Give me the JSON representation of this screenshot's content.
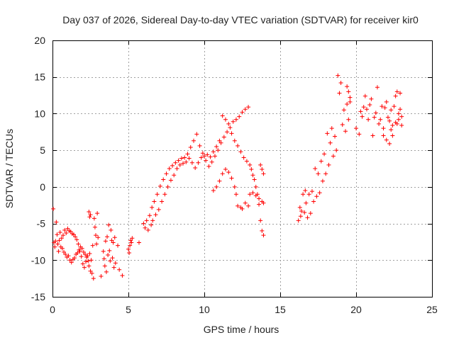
{
  "chart_data": {
    "type": "scatter",
    "title": "Day 037 of 2026, Sidereal Day-to-day VTEC variation (SDTVAR) for receiver kir0",
    "xlabel": "GPS time / hours",
    "ylabel": "SDTVAR / TECUs",
    "xlim": [
      0,
      25
    ],
    "ylim": [
      -15,
      20
    ],
    "xticks": [
      0,
      5,
      10,
      15,
      20,
      25
    ],
    "yticks": [
      -15,
      -10,
      -5,
      0,
      5,
      10,
      15,
      20
    ],
    "xtick_labels": [
      "0",
      "5",
      "10",
      "15",
      "20",
      "25"
    ],
    "ytick_labels": [
      "-15",
      "-10",
      "-5",
      "0",
      "5",
      "10",
      "15",
      "20"
    ],
    "grid": true,
    "marker": "plus",
    "series": [
      {
        "name": "SDTVAR",
        "color": "#ff0000",
        "points": [
          [
            0.05,
            -3.0
          ],
          [
            0.1,
            -7.6
          ],
          [
            0.15,
            -8.2
          ],
          [
            0.2,
            -7.4
          ],
          [
            0.25,
            -4.8
          ],
          [
            0.3,
            -6.5
          ],
          [
            0.35,
            -7.8
          ],
          [
            0.4,
            -8.8
          ],
          [
            0.45,
            -7.3
          ],
          [
            0.5,
            -6.2
          ],
          [
            0.55,
            -8.2
          ],
          [
            0.6,
            -7.0
          ],
          [
            0.65,
            -8.4
          ],
          [
            0.7,
            -6.6
          ],
          [
            0.75,
            -8.9
          ],
          [
            0.8,
            -5.9
          ],
          [
            0.85,
            -9.2
          ],
          [
            0.9,
            -6.3
          ],
          [
            0.95,
            -9.6
          ],
          [
            1.0,
            -5.7
          ],
          [
            1.05,
            -9.4
          ],
          [
            1.1,
            -6.0
          ],
          [
            1.15,
            -10.0
          ],
          [
            1.2,
            -6.1
          ],
          [
            1.25,
            -10.3
          ],
          [
            1.3,
            -6.4
          ],
          [
            1.35,
            -9.9
          ],
          [
            1.4,
            -6.5
          ],
          [
            1.45,
            -9.7
          ],
          [
            1.5,
            -6.8
          ],
          [
            1.55,
            -9.2
          ],
          [
            1.6,
            -7.2
          ],
          [
            1.65,
            -9.0
          ],
          [
            1.7,
            -7.8
          ],
          [
            1.75,
            -8.6
          ],
          [
            1.8,
            -8.8
          ],
          [
            1.85,
            -8.2
          ],
          [
            1.9,
            -9.5
          ],
          [
            1.95,
            -8.4
          ],
          [
            2.0,
            -10.5
          ],
          [
            2.05,
            -8.9
          ],
          [
            2.1,
            -11.0
          ],
          [
            2.15,
            -9.2
          ],
          [
            2.2,
            -10.2
          ],
          [
            2.25,
            -9.6
          ],
          [
            2.3,
            -9.4
          ],
          [
            2.35,
            -10.1
          ],
          [
            2.4,
            -10.8
          ],
          [
            2.45,
            -9.1
          ],
          [
            2.5,
            -11.5
          ],
          [
            2.4,
            -3.4
          ],
          [
            2.45,
            -4.1
          ],
          [
            2.5,
            -3.8
          ],
          [
            2.55,
            -10.0
          ],
          [
            2.6,
            -11.8
          ],
          [
            2.65,
            -8.0
          ],
          [
            2.7,
            -12.5
          ],
          [
            2.75,
            -4.3
          ],
          [
            2.8,
            -5.5
          ],
          [
            2.85,
            -6.6
          ],
          [
            2.9,
            -7.8
          ],
          [
            2.95,
            -3.6
          ],
          [
            3.0,
            -6.9
          ],
          [
            3.2,
            -12.2
          ],
          [
            3.35,
            -8.8
          ],
          [
            3.4,
            -9.8
          ],
          [
            3.45,
            -10.8
          ],
          [
            3.5,
            -7.4
          ],
          [
            3.55,
            -11.6
          ],
          [
            3.6,
            -6.8
          ],
          [
            3.65,
            -9.3
          ],
          [
            3.7,
            -5.2
          ],
          [
            3.75,
            -8.7
          ],
          [
            3.8,
            -10.1
          ],
          [
            3.85,
            -5.9
          ],
          [
            3.9,
            -7.3
          ],
          [
            3.95,
            -9.7
          ],
          [
            4.0,
            -7.6
          ],
          [
            4.05,
            -11.0
          ],
          [
            4.1,
            -6.9
          ],
          [
            4.15,
            -10.4
          ],
          [
            4.3,
            -8.0
          ],
          [
            4.4,
            -11.3
          ],
          [
            4.6,
            -12.1
          ],
          [
            5.0,
            -8.5
          ],
          [
            5.05,
            -9.0
          ],
          [
            5.1,
            -8.0
          ],
          [
            5.15,
            -7.3
          ],
          [
            5.2,
            -7.6
          ],
          [
            5.25,
            -7.0
          ],
          [
            5.7,
            -7.6
          ],
          [
            6.0,
            -5.0
          ],
          [
            6.1,
            -5.6
          ],
          [
            6.2,
            -4.6
          ],
          [
            6.3,
            -5.9
          ],
          [
            6.4,
            -3.9
          ],
          [
            6.5,
            -5.2
          ],
          [
            6.55,
            -2.8
          ],
          [
            6.6,
            -4.6
          ],
          [
            6.7,
            -2.0
          ],
          [
            6.8,
            -3.8
          ],
          [
            6.9,
            -1.0
          ],
          [
            7.0,
            -3.1
          ],
          [
            7.1,
            0.1
          ],
          [
            7.2,
            -2.0
          ],
          [
            7.3,
            1.0
          ],
          [
            7.4,
            -1.0
          ],
          [
            7.5,
            1.8
          ],
          [
            7.6,
            0.0
          ],
          [
            7.7,
            2.5
          ],
          [
            7.8,
            0.9
          ],
          [
            7.9,
            2.9
          ],
          [
            8.0,
            1.6
          ],
          [
            8.1,
            3.3
          ],
          [
            8.2,
            2.5
          ],
          [
            8.3,
            3.6
          ],
          [
            8.4,
            3.0
          ],
          [
            8.5,
            3.9
          ],
          [
            8.6,
            3.2
          ],
          [
            8.7,
            4.0
          ],
          [
            8.8,
            3.4
          ],
          [
            8.9,
            4.5
          ],
          [
            9.0,
            3.9
          ],
          [
            9.1,
            5.4
          ],
          [
            9.2,
            3.3
          ],
          [
            9.3,
            6.3
          ],
          [
            9.4,
            2.6
          ],
          [
            9.5,
            7.2
          ],
          [
            9.6,
            3.3
          ],
          [
            9.7,
            5.6
          ],
          [
            9.8,
            4.0
          ],
          [
            9.9,
            4.6
          ],
          [
            10.0,
            4.2
          ],
          [
            10.1,
            3.6
          ],
          [
            10.2,
            4.4
          ],
          [
            10.3,
            2.8
          ],
          [
            10.4,
            4.1
          ],
          [
            10.5,
            3.4
          ],
          [
            10.6,
            4.8
          ],
          [
            10.7,
            4.2
          ],
          [
            10.8,
            5.5
          ],
          [
            10.9,
            5.0
          ],
          [
            11.0,
            6.3
          ],
          [
            11.1,
            6.0
          ],
          [
            11.2,
            9.7
          ],
          [
            11.3,
            6.8
          ],
          [
            11.4,
            9.2
          ],
          [
            11.5,
            7.5
          ],
          [
            11.6,
            8.6
          ],
          [
            11.7,
            8.1
          ],
          [
            11.8,
            7.3
          ],
          [
            11.9,
            8.9
          ],
          [
            12.0,
            6.3
          ],
          [
            12.1,
            9.2
          ],
          [
            12.2,
            5.6
          ],
          [
            12.3,
            9.6
          ],
          [
            12.4,
            4.8
          ],
          [
            12.5,
            10.2
          ],
          [
            12.6,
            4.0
          ],
          [
            12.7,
            10.6
          ],
          [
            12.8,
            3.5
          ],
          [
            12.9,
            10.9
          ],
          [
            13.0,
            3.0
          ],
          [
            13.1,
            2.4
          ],
          [
            13.2,
            1.6
          ],
          [
            13.3,
            1.0
          ],
          [
            13.4,
            0.0
          ],
          [
            13.5,
            -1.0
          ],
          [
            13.6,
            -2.4
          ],
          [
            13.7,
            -4.6
          ],
          [
            13.8,
            -6.0
          ],
          [
            13.9,
            -6.6
          ],
          [
            13.7,
            3.0
          ],
          [
            13.8,
            2.4
          ],
          [
            13.9,
            1.8
          ],
          [
            10.6,
            -0.5
          ],
          [
            10.8,
            0.0
          ],
          [
            11.0,
            0.8
          ],
          [
            11.2,
            1.8
          ],
          [
            11.4,
            2.4
          ],
          [
            11.6,
            2.0
          ],
          [
            11.8,
            1.2
          ],
          [
            12.0,
            0.0
          ],
          [
            12.1,
            -1.0
          ],
          [
            12.2,
            -2.6
          ],
          [
            12.4,
            -2.8
          ],
          [
            12.5,
            -3.0
          ],
          [
            12.7,
            -2.2
          ],
          [
            12.9,
            -2.6
          ],
          [
            13.0,
            -1.0
          ],
          [
            13.2,
            -0.8
          ],
          [
            13.4,
            -1.2
          ],
          [
            13.6,
            -1.6
          ],
          [
            13.8,
            -2.0
          ],
          [
            13.9,
            -2.2
          ],
          [
            16.2,
            -4.6
          ],
          [
            16.3,
            -2.8
          ],
          [
            16.35,
            -4.0
          ],
          [
            16.4,
            -3.3
          ],
          [
            16.5,
            -1.0
          ],
          [
            16.6,
            -3.5
          ],
          [
            16.65,
            -0.5
          ],
          [
            16.7,
            -2.2
          ],
          [
            16.8,
            -4.2
          ],
          [
            16.9,
            -1.0
          ],
          [
            17.0,
            -3.6
          ],
          [
            17.1,
            -0.6
          ],
          [
            17.2,
            -2.0
          ],
          [
            17.3,
            2.5
          ],
          [
            17.4,
            -1.3
          ],
          [
            17.5,
            1.8
          ],
          [
            17.6,
            -0.8
          ],
          [
            17.7,
            3.5
          ],
          [
            17.8,
            0.8
          ],
          [
            17.9,
            4.5
          ],
          [
            18.0,
            1.8
          ],
          [
            18.1,
            7.3
          ],
          [
            18.2,
            3.0
          ],
          [
            18.3,
            6.0
          ],
          [
            18.4,
            8.0
          ],
          [
            18.5,
            4.2
          ],
          [
            18.6,
            6.9
          ],
          [
            18.7,
            5.0
          ],
          [
            18.8,
            15.2
          ],
          [
            18.9,
            12.8
          ],
          [
            19.0,
            14.2
          ],
          [
            19.1,
            8.5
          ],
          [
            19.2,
            10.5
          ],
          [
            19.3,
            7.6
          ],
          [
            19.4,
            11.3
          ],
          [
            19.5,
            9.2
          ],
          [
            19.6,
            12.2
          ],
          [
            19.4,
            13.7
          ],
          [
            19.5,
            13.0
          ],
          [
            19.6,
            11.6
          ],
          [
            20.0,
            8.0
          ],
          [
            20.2,
            7.2
          ],
          [
            20.3,
            10.3
          ],
          [
            20.4,
            9.6
          ],
          [
            20.5,
            10.9
          ],
          [
            20.6,
            12.4
          ],
          [
            20.7,
            10.6
          ],
          [
            20.8,
            9.2
          ],
          [
            20.9,
            11.2
          ],
          [
            21.0,
            12.0
          ],
          [
            21.1,
            7.0
          ],
          [
            21.2,
            9.5
          ],
          [
            21.3,
            10.1
          ],
          [
            21.4,
            13.6
          ],
          [
            21.5,
            8.6
          ],
          [
            21.6,
            9.2
          ],
          [
            21.7,
            11.0
          ],
          [
            21.8,
            7.0
          ],
          [
            21.9,
            10.8
          ],
          [
            22.0,
            6.4
          ],
          [
            22.1,
            9.5
          ],
          [
            22.2,
            5.9
          ],
          [
            22.3,
            10.5
          ],
          [
            22.4,
            8.4
          ],
          [
            22.5,
            11.0
          ],
          [
            22.6,
            12.4
          ],
          [
            22.7,
            13.0
          ],
          [
            22.8,
            9.2
          ],
          [
            22.9,
            12.8
          ],
          [
            23.0,
            8.4
          ],
          [
            22.4,
            7.0
          ],
          [
            22.6,
            8.8
          ],
          [
            22.8,
            10.0
          ],
          [
            23.0,
            9.6
          ],
          [
            22.2,
            9.0
          ],
          [
            21.8,
            8.0
          ],
          [
            22.0,
            11.6
          ],
          [
            22.3,
            7.8
          ],
          [
            22.7,
            8.6
          ],
          [
            22.9,
            10.6
          ]
        ]
      }
    ]
  }
}
